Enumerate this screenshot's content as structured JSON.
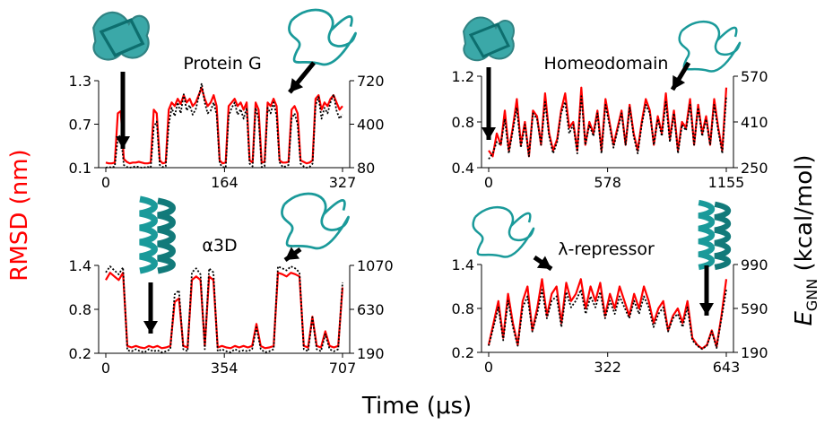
{
  "figure": {
    "xlabel": "Time (μs)",
    "left_ylabel": "RMSD (nm)",
    "right_ylabel_main": "E",
    "right_ylabel_sub": "GNN",
    "right_ylabel_unit": " (kcal/mol)",
    "colors": {
      "rmsd": "#ff0000",
      "energy": "#000000",
      "structure": "#1a9a9a"
    }
  },
  "chart_data": [
    {
      "type": "line",
      "title": "Protein G",
      "x_ticks": [
        "0",
        "164",
        "327"
      ],
      "y_ticks_left": [
        "0.1",
        "0.7",
        "1.3"
      ],
      "y_ticks_right": [
        "80",
        "400",
        "720"
      ],
      "xlim": [
        0,
        327
      ],
      "ylim_left": [
        0.1,
        1.3
      ],
      "ylim_right": [
        80,
        720
      ],
      "rmsd": [
        0.17,
        0.16,
        0.16,
        0.17,
        0.85,
        0.88,
        0.22,
        0.18,
        0.16,
        0.17,
        0.17,
        0.18,
        0.17,
        0.16,
        0.16,
        0.17,
        0.9,
        0.85,
        0.2,
        0.16,
        0.17,
        0.9,
        1.0,
        0.95,
        1.05,
        0.98,
        1.1,
        1.0,
        1.05,
        0.95,
        1.0,
        1.1,
        1.2,
        1.05,
        0.95,
        1.0,
        1.1,
        0.95,
        0.2,
        0.16,
        0.17,
        0.95,
        1.0,
        1.05,
        0.95,
        1.0,
        0.9,
        1.0,
        0.2,
        0.17,
        1.0,
        0.9,
        0.17,
        0.18,
        1.0,
        0.95,
        1.05,
        0.95,
        0.2,
        0.17,
        0.17,
        0.18,
        0.9,
        0.95,
        0.85,
        0.2,
        0.18,
        0.16,
        0.17,
        0.2,
        1.05,
        1.1,
        0.9,
        1.0,
        0.95,
        1.05,
        1.1,
        1.0,
        0.9,
        0.95
      ],
      "energy": [
        80,
        85,
        80,
        90,
        300,
        320,
        100,
        85,
        80,
        85,
        90,
        85,
        80,
        82,
        85,
        80,
        380,
        420,
        100,
        85,
        90,
        400,
        520,
        460,
        560,
        480,
        620,
        500,
        540,
        470,
        510,
        600,
        700,
        560,
        480,
        500,
        560,
        470,
        110,
        85,
        80,
        460,
        520,
        560,
        470,
        510,
        440,
        520,
        110,
        90,
        520,
        440,
        85,
        90,
        520,
        480,
        560,
        460,
        120,
        85,
        90,
        100,
        440,
        480,
        400,
        110,
        90,
        80,
        85,
        110,
        540,
        600,
        440,
        520,
        480,
        560,
        620,
        500,
        440,
        470
      ]
    },
    {
      "type": "line",
      "title": "Homeodomain",
      "x_ticks": [
        "0",
        "578",
        "1155"
      ],
      "y_ticks_left": [
        "0.4",
        "0.8",
        "1.2"
      ],
      "y_ticks_right": [
        "250",
        "410",
        "570"
      ],
      "xlim": [
        0,
        1155
      ],
      "ylim_left": [
        0.4,
        1.2
      ],
      "ylim_right": [
        250,
        570
      ],
      "rmsd": [
        0.55,
        0.5,
        0.7,
        0.6,
        0.9,
        0.55,
        0.75,
        1.0,
        0.6,
        0.8,
        0.5,
        0.9,
        0.85,
        0.6,
        1.05,
        0.7,
        0.55,
        0.65,
        0.9,
        1.05,
        0.75,
        0.8,
        0.55,
        1.1,
        0.6,
        0.8,
        0.7,
        0.9,
        0.55,
        1.0,
        0.8,
        0.6,
        0.75,
        0.9,
        0.6,
        0.95,
        0.7,
        0.55,
        0.8,
        1.0,
        0.9,
        0.6,
        0.85,
        0.7,
        1.05,
        0.65,
        0.9,
        0.55,
        0.8,
        0.75,
        1.0,
        0.6,
        0.95,
        0.7,
        0.85,
        0.6,
        1.0,
        0.75,
        0.55,
        1.1
      ],
      "energy": [
        280,
        300,
        340,
        330,
        420,
        300,
        380,
        460,
        320,
        400,
        290,
        440,
        420,
        330,
        480,
        360,
        300,
        340,
        440,
        480,
        370,
        400,
        300,
        500,
        330,
        400,
        360,
        440,
        300,
        470,
        400,
        320,
        380,
        440,
        330,
        460,
        360,
        300,
        400,
        470,
        440,
        330,
        420,
        360,
        480,
        340,
        440,
        300,
        400,
        380,
        470,
        330,
        460,
        360,
        420,
        330,
        470,
        380,
        300,
        500
      ]
    },
    {
      "type": "line",
      "title": "α3D",
      "x_ticks": [
        "0",
        "354",
        "707"
      ],
      "y_ticks_left": [
        "0.2",
        "0.8",
        "1.4"
      ],
      "y_ticks_right": [
        "190",
        "630",
        "1070"
      ],
      "xlim": [
        0,
        707
      ],
      "ylim_left": [
        0.2,
        1.4
      ],
      "ylim_right": [
        190,
        1070
      ],
      "rmsd": [
        1.2,
        1.3,
        1.25,
        1.2,
        1.3,
        0.3,
        0.28,
        0.3,
        0.28,
        0.27,
        0.3,
        0.28,
        0.3,
        0.27,
        0.28,
        0.3,
        0.9,
        0.95,
        0.3,
        0.28,
        1.2,
        1.25,
        1.2,
        0.3,
        1.25,
        1.2,
        0.28,
        0.3,
        0.28,
        0.27,
        0.3,
        0.28,
        0.3,
        0.28,
        0.3,
        0.6,
        0.3,
        0.27,
        0.28,
        0.3,
        1.3,
        1.28,
        1.25,
        1.3,
        1.28,
        1.25,
        0.3,
        0.28,
        0.7,
        0.3,
        0.28,
        0.5,
        0.3,
        0.28,
        0.3,
        1.1
      ],
      "energy": [
        1000,
        1060,
        1020,
        980,
        1050,
        220,
        210,
        230,
        210,
        200,
        230,
        210,
        220,
        200,
        210,
        230,
        780,
        820,
        230,
        210,
        1000,
        1040,
        980,
        230,
        1040,
        1000,
        210,
        230,
        210,
        200,
        230,
        210,
        220,
        210,
        230,
        450,
        230,
        200,
        210,
        230,
        1060,
        1040,
        1020,
        1060,
        1040,
        1000,
        230,
        210,
        550,
        230,
        210,
        380,
        230,
        210,
        230,
        900
      ]
    },
    {
      "type": "line",
      "title": "λ-repressor",
      "x_ticks": [
        "0",
        "322",
        "643"
      ],
      "y_ticks_left": [
        "0.2",
        "0.8",
        "1.4"
      ],
      "y_ticks_right": [
        "190",
        "590",
        "990"
      ],
      "xlim": [
        0,
        643
      ],
      "ylim_left": [
        0.2,
        1.4
      ],
      "ylim_right": [
        190,
        990
      ],
      "rmsd": [
        0.3,
        0.6,
        0.9,
        0.4,
        1.0,
        0.6,
        0.3,
        0.9,
        1.1,
        0.5,
        0.8,
        1.2,
        0.7,
        1.0,
        1.1,
        0.6,
        1.15,
        0.9,
        1.0,
        1.2,
        0.8,
        1.1,
        0.9,
        1.15,
        0.7,
        1.0,
        0.8,
        1.1,
        0.9,
        0.7,
        1.0,
        0.8,
        1.1,
        0.9,
        0.6,
        0.8,
        0.9,
        0.5,
        0.7,
        0.8,
        0.6,
        0.9,
        0.4,
        0.3,
        0.25,
        0.3,
        0.5,
        0.28,
        0.7,
        1.2
      ],
      "energy": [
        250,
        420,
        600,
        300,
        660,
        420,
        250,
        600,
        700,
        380,
        540,
        760,
        500,
        660,
        700,
        420,
        740,
        600,
        660,
        760,
        540,
        700,
        600,
        740,
        500,
        660,
        540,
        700,
        600,
        500,
        660,
        540,
        700,
        600,
        420,
        540,
        600,
        380,
        500,
        540,
        420,
        600,
        300,
        250,
        220,
        250,
        380,
        230,
        500,
        760
      ]
    }
  ],
  "structures": [
    "structure-protein-g-folded",
    "structure-protein-g-unfolded",
    "structure-homeodomain-folded",
    "structure-homeodomain-unfolded",
    "structure-a3d-folded",
    "structure-a3d-unfolded",
    "structure-lambda-unfolded",
    "structure-lambda-folded"
  ]
}
